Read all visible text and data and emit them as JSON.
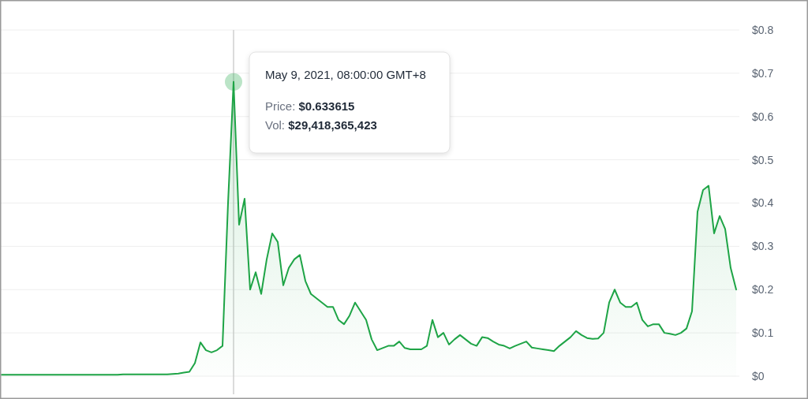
{
  "chart_data": {
    "type": "area",
    "categories": [
      null,
      null,
      null,
      null,
      null,
      null,
      null,
      null,
      null,
      null,
      null,
      null,
      null,
      null,
      null,
      null,
      null,
      null,
      null,
      null,
      null,
      null,
      null,
      null,
      null,
      null,
      null,
      null,
      null,
      null,
      null,
      null,
      null,
      null,
      null,
      null,
      null,
      null,
      null,
      null,
      null,
      null,
      null,
      null,
      null,
      null,
      null,
      null,
      null,
      null,
      null,
      null,
      null,
      null,
      null,
      null,
      null,
      null,
      null,
      null,
      null,
      null,
      null,
      null,
      null,
      null,
      null,
      null,
      null,
      null,
      null,
      null,
      null,
      null,
      null,
      null,
      null,
      null,
      null,
      null,
      null,
      null,
      null,
      null,
      null,
      null,
      null,
      null,
      null,
      null,
      null,
      null,
      null,
      null,
      null,
      null,
      null,
      null,
      null,
      null,
      null,
      null,
      null,
      null,
      null,
      null,
      null,
      null,
      null,
      null,
      null,
      null,
      null,
      null,
      null,
      null,
      null,
      null,
      null,
      null,
      null,
      null,
      null,
      null,
      null,
      null,
      null,
      null,
      null,
      null,
      null,
      null,
      null,
      null
    ],
    "series": [
      {
        "color": "#1ea446",
        "values": [
          0.003,
          0.003,
          0.003,
          0.003,
          0.003,
          0.003,
          0.003,
          0.003,
          0.003,
          0.003,
          0.003,
          0.003,
          0.003,
          0.003,
          0.003,
          0.003,
          0.003,
          0.003,
          0.003,
          0.003,
          0.003,
          0.003,
          0.004,
          0.004,
          0.004,
          0.004,
          0.004,
          0.004,
          0.004,
          0.004,
          0.004,
          0.005,
          0.006,
          0.008,
          0.01,
          0.03,
          0.078,
          0.06,
          0.055,
          0.06,
          0.07,
          0.4,
          0.68,
          0.35,
          0.41,
          0.2,
          0.24,
          0.19,
          0.27,
          0.33,
          0.31,
          0.21,
          0.25,
          0.27,
          0.28,
          0.22,
          0.19,
          0.18,
          0.17,
          0.16,
          0.16,
          0.13,
          0.12,
          0.14,
          0.17,
          0.15,
          0.13,
          0.085,
          0.06,
          0.065,
          0.07,
          0.07,
          0.08,
          0.065,
          0.062,
          0.062,
          0.062,
          0.07,
          0.13,
          0.09,
          0.1,
          0.073,
          0.085,
          0.095,
          0.085,
          0.075,
          0.07,
          0.09,
          0.088,
          0.08,
          0.073,
          0.07,
          0.064,
          0.07,
          0.075,
          0.08,
          0.066,
          0.064,
          0.062,
          0.06,
          0.058,
          0.07,
          0.08,
          0.09,
          0.104,
          0.095,
          0.088,
          0.086,
          0.087,
          0.1,
          0.17,
          0.2,
          0.17,
          0.16,
          0.16,
          0.17,
          0.13,
          0.115,
          0.12,
          0.12,
          0.1,
          0.098,
          0.095,
          0.1,
          0.11,
          0.15,
          0.38,
          0.43,
          0.44,
          0.33,
          0.37,
          0.34,
          0.25,
          0.2
        ]
      }
    ],
    "ylim": [
      0,
      0.8
    ],
    "yticks": [
      {
        "value": 0,
        "label": "$0"
      },
      {
        "value": 0.1,
        "label": "$0.1"
      },
      {
        "value": 0.2,
        "label": "$0.2"
      },
      {
        "value": 0.3,
        "label": "$0.3"
      },
      {
        "value": 0.4,
        "label": "$0.4"
      },
      {
        "value": 0.5,
        "label": "$0.5"
      },
      {
        "value": 0.6,
        "label": "$0.6"
      },
      {
        "value": 0.7,
        "label": "$0.7"
      },
      {
        "value": 0.8,
        "label": "$0.8"
      }
    ],
    "grid": "y",
    "tick_labels": "y",
    "annotations": [
      "May 9, 2021, 08:00:00 GMT+8",
      "Price: $0.633615",
      "Vol: $29,418,365,423"
    ]
  }
}
